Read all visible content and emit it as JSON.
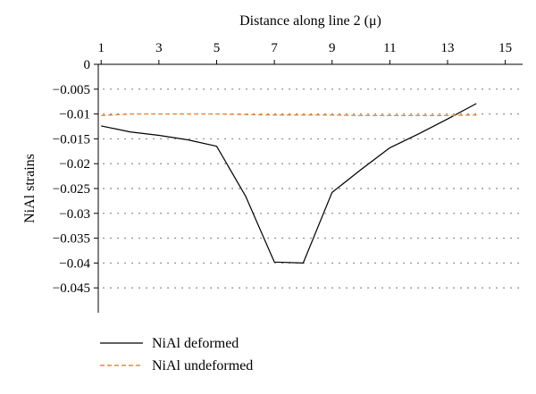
{
  "chart_data": {
    "type": "line",
    "title": "",
    "xlabel": "Distance along line 2 (μ)",
    "ylabel": "NiAl strains",
    "x_ticks": [
      1,
      3,
      5,
      7,
      9,
      11,
      13,
      15
    ],
    "x_tick_labels": [
      "1",
      "3",
      "5",
      "7",
      "9",
      "11",
      "13",
      "15"
    ],
    "y_ticks": [
      0,
      -0.005,
      -0.01,
      -0.015,
      -0.02,
      -0.025,
      -0.03,
      -0.035,
      -0.04,
      -0.045
    ],
    "y_tick_labels": [
      "0",
      "−0.005",
      "−0.01",
      "−0.015",
      "−0.02",
      "−0.025",
      "−0.03",
      "−0.035",
      "−0.04",
      "−0.045"
    ],
    "xlim": [
      0.9,
      15.6
    ],
    "ylim": [
      -0.05,
      0
    ],
    "x_axis_position": "top",
    "grid": "horizontal dotted",
    "legend_position": "bottom-left",
    "series": [
      {
        "name": "NiAl deformed",
        "style": "solid",
        "color": "#000000",
        "x": [
          1,
          2,
          3,
          4,
          5,
          6,
          7,
          8,
          9,
          10,
          11,
          12,
          13,
          14
        ],
        "y": [
          -0.0124,
          -0.0136,
          -0.0143,
          -0.0152,
          -0.0165,
          -0.0265,
          -0.0398,
          -0.04,
          -0.0258,
          -0.0212,
          -0.0168,
          -0.014,
          -0.011,
          -0.0079
        ]
      },
      {
        "name": "NiAl undeformed",
        "style": "dashed",
        "color": "#e8883a",
        "x": [
          1,
          2,
          3,
          4,
          5,
          6,
          7,
          8,
          9,
          10,
          11,
          12,
          13,
          14
        ],
        "y": [
          -0.0103,
          -0.01,
          -0.01,
          -0.01,
          -0.01,
          -0.0101,
          -0.0102,
          -0.0102,
          -0.0102,
          -0.0103,
          -0.0103,
          -0.0103,
          -0.0103,
          -0.0102
        ]
      }
    ]
  }
}
